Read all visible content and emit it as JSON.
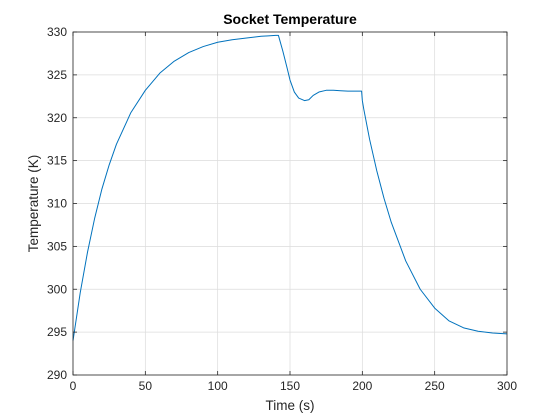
{
  "chart_data": {
    "type": "line",
    "title": "Socket Temperature",
    "xlabel": "Time (s)",
    "ylabel": "Temperature (K)",
    "xlim": [
      0,
      300
    ],
    "ylim": [
      290,
      330
    ],
    "xticks": [
      0,
      50,
      100,
      150,
      200,
      250,
      300
    ],
    "yticks": [
      290,
      295,
      300,
      305,
      310,
      315,
      320,
      325,
      330
    ],
    "grid": true,
    "legend": "none",
    "series": [
      {
        "color": "#0072BD",
        "x": [
          0,
          5,
          10,
          15,
          20,
          25,
          30,
          40,
          50,
          60,
          70,
          80,
          90,
          100,
          110,
          120,
          130,
          135,
          140,
          142,
          145,
          148,
          150,
          153,
          156,
          160,
          163,
          166,
          170,
          175,
          180,
          185,
          190,
          195,
          199.5,
          200,
          201,
          205,
          210,
          215,
          220,
          230,
          240,
          250,
          260,
          270,
          280,
          290,
          300
        ],
        "values": [
          294,
          299.6,
          304.3,
          308.3,
          311.7,
          314.5,
          316.9,
          320.6,
          323.2,
          325.2,
          326.6,
          327.6,
          328.3,
          328.8,
          329.1,
          329.3,
          329.5,
          329.55,
          329.6,
          329.6,
          327.8,
          325.8,
          324.4,
          323.0,
          322.3,
          322.0,
          322.1,
          322.6,
          323.0,
          323.2,
          323.2,
          323.15,
          323.1,
          323.1,
          323.1,
          322.0,
          321.0,
          317.5,
          313.8,
          310.6,
          307.8,
          303.3,
          300.0,
          297.8,
          296.3,
          295.5,
          295.1,
          294.9,
          294.8
        ]
      }
    ]
  }
}
